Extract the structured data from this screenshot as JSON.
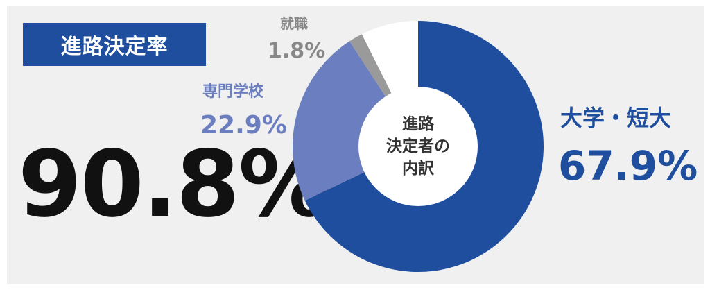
{
  "title": "進路決定率",
  "overall_rate": "90.8%",
  "center_label": [
    "進路",
    "決定者の",
    "内訳"
  ],
  "labels": {
    "university": {
      "name": "大学・短大",
      "value": "67.9%"
    },
    "vocational": {
      "name": "専門学校",
      "value": "22.9%"
    },
    "employment": {
      "name": "就職",
      "value": "1.8%"
    }
  },
  "chart_data": {
    "type": "pie",
    "categories": [
      "大学・短大",
      "専門学校",
      "就職",
      ""
    ],
    "values": [
      67.9,
      22.9,
      1.8,
      7.4
    ],
    "colors": [
      "#1f4e9e",
      "#6b7fc0",
      "#9a9a9a",
      "#ffffff"
    ],
    "title": "",
    "legend": "none"
  }
}
